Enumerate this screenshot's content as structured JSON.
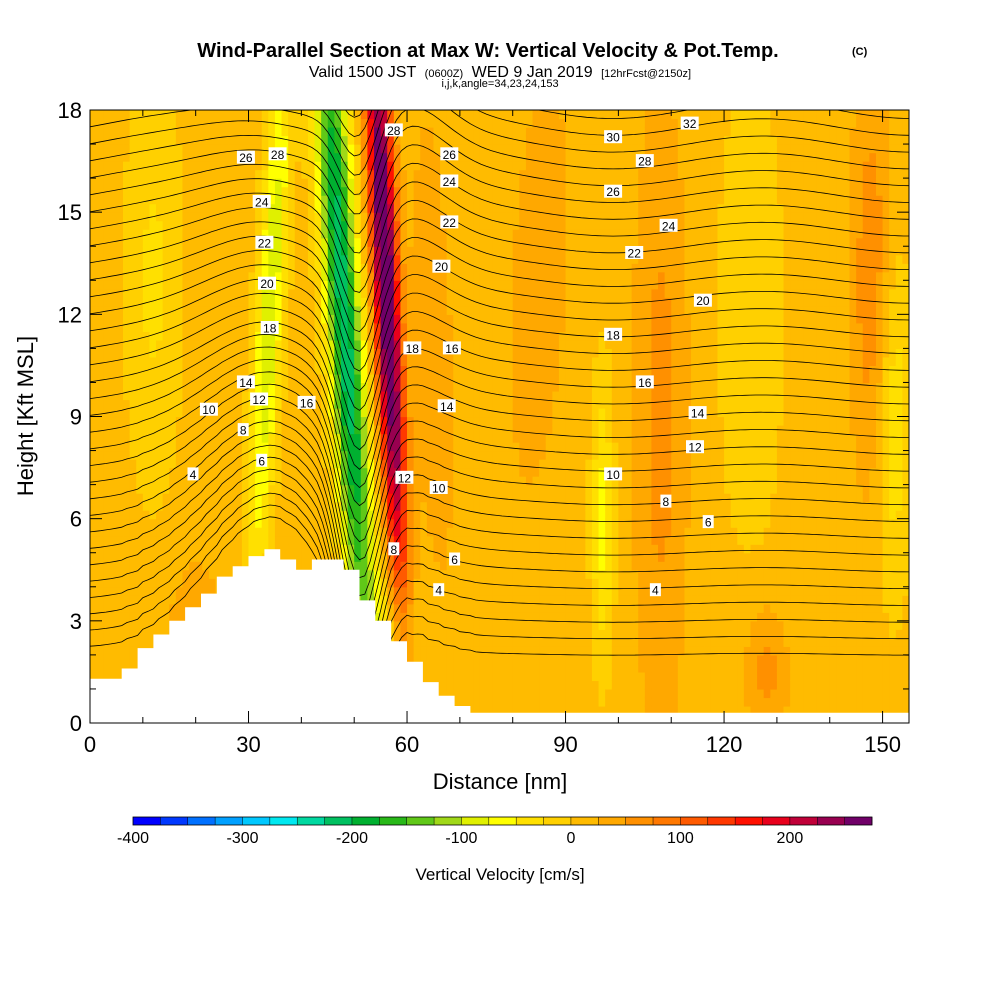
{
  "chart_data": {
    "type": "heatmap",
    "title": "Wind-Parallel Section at Max W: Vertical Velocity & Pot.Temp.",
    "title_mark": "(C)",
    "subtitle_parts": [
      "Valid 1500 JST",
      "(0600Z)",
      "WED 9 Jan 2019",
      "[12hrFcst@2150z]"
    ],
    "subtitle_small": "i,j,k,angle=34,23,24,153",
    "xlabel": "Distance [nm]",
    "ylabel": "Height [Kft MSL]",
    "xlim": [
      0,
      155
    ],
    "ylim": [
      0,
      18
    ],
    "x_ticks": [
      0,
      30,
      60,
      90,
      120,
      150
    ],
    "y_ticks": [
      0,
      3,
      6,
      9,
      12,
      15,
      18
    ],
    "x_minor_step": 10,
    "y_minor_step": 1,
    "colorbar": {
      "title": "Vertical Velocity [cm/s]",
      "min": -400,
      "max": 275,
      "step": 25,
      "tick_values": [
        -400,
        -300,
        -200,
        -100,
        0,
        100,
        200
      ],
      "colors": [
        "#0000ff",
        "#0038ff",
        "#0070ff",
        "#00a0ff",
        "#00c8ff",
        "#00e8f0",
        "#00d8a0",
        "#00c060",
        "#00b030",
        "#28b818",
        "#60c818",
        "#a0d818",
        "#e0f000",
        "#ffff00",
        "#ffe000",
        "#ffd000",
        "#ffbb00",
        "#ffa800",
        "#ff9000",
        "#ff7800",
        "#ff5a00",
        "#ff3800",
        "#ff1000",
        "#e8001c",
        "#c00038",
        "#980050",
        "#700068"
      ]
    },
    "terrain_profile": [
      [
        0,
        1.3
      ],
      [
        6,
        1.3
      ],
      [
        6,
        1.6
      ],
      [
        9,
        1.6
      ],
      [
        9,
        2.2
      ],
      [
        12,
        2.2
      ],
      [
        12,
        2.6
      ],
      [
        15,
        2.6
      ],
      [
        15,
        3.0
      ],
      [
        18,
        3.0
      ],
      [
        18,
        3.4
      ],
      [
        21,
        3.4
      ],
      [
        21,
        3.8
      ],
      [
        24,
        3.8
      ],
      [
        24,
        4.3
      ],
      [
        27,
        4.3
      ],
      [
        27,
        4.6
      ],
      [
        30,
        4.6
      ],
      [
        30,
        4.9
      ],
      [
        33,
        4.9
      ],
      [
        33,
        5.1
      ],
      [
        36,
        5.1
      ],
      [
        36,
        4.8
      ],
      [
        39,
        4.8
      ],
      [
        39,
        4.5
      ],
      [
        42,
        4.5
      ],
      [
        42,
        4.8
      ],
      [
        48,
        4.8
      ],
      [
        48,
        4.5
      ],
      [
        51,
        4.5
      ],
      [
        51,
        3.6
      ],
      [
        54,
        3.6
      ],
      [
        54,
        3.0
      ],
      [
        57,
        3.0
      ],
      [
        57,
        2.4
      ],
      [
        60,
        2.4
      ],
      [
        60,
        1.8
      ],
      [
        63,
        1.8
      ],
      [
        63,
        1.2
      ],
      [
        66,
        1.2
      ],
      [
        66,
        0.8
      ],
      [
        69,
        0.8
      ],
      [
        69,
        0.5
      ],
      [
        72,
        0.5
      ],
      [
        72,
        0.3
      ],
      [
        155,
        0.3
      ]
    ],
    "w_field": {
      "background": 10,
      "features": [
        {
          "x": 48,
          "z": 12,
          "sx": 3.2,
          "sz": 12,
          "slope": -0.42,
          "amp": -230
        },
        {
          "x": 56,
          "z": 13,
          "sx": 2.4,
          "sz": 10,
          "slope": -0.3,
          "amp": 300
        },
        {
          "x": 34,
          "z": 12,
          "sx": 2.5,
          "sz": 8,
          "slope": 0.35,
          "amp": -110
        },
        {
          "x": 65,
          "z": 11,
          "sx": 4,
          "sz": 8,
          "slope": -0.2,
          "amp": 30
        },
        {
          "x": 12,
          "z": 13,
          "sx": 5,
          "sz": 6,
          "slope": 0,
          "amp": -40
        },
        {
          "x": 20,
          "z": 2,
          "sx": 5,
          "sz": 2.5,
          "slope": 0,
          "amp": 50
        },
        {
          "x": 58,
          "z": 2.5,
          "sx": 4,
          "sz": 2,
          "slope": 0,
          "amp": -60
        },
        {
          "x": 85,
          "z": 13,
          "sx": 5,
          "sz": 6,
          "slope": 0.3,
          "amp": 40
        },
        {
          "x": 97,
          "z": 6,
          "sx": 2,
          "sz": 4,
          "slope": 0,
          "amp": -70
        },
        {
          "x": 108,
          "z": 9,
          "sx": 5,
          "sz": 9,
          "slope": 0,
          "amp": 50
        },
        {
          "x": 125,
          "z": 12,
          "sx": 6,
          "sz": 7,
          "slope": 0,
          "amp": -30
        },
        {
          "x": 128,
          "z": 1.5,
          "sx": 4,
          "sz": 2,
          "slope": 0,
          "amp": 50
        },
        {
          "x": 148,
          "z": 13,
          "sx": 4,
          "sz": 6,
          "slope": 0,
          "amp": 60
        },
        {
          "x": 152,
          "z": 9,
          "sx": 3,
          "sz": 5,
          "slope": 0,
          "amp": -60
        }
      ]
    },
    "theta_contours": {
      "min": 2,
      "max": 33,
      "step": 0.5
    },
    "contour_labels": [
      {
        "text": "26",
        "x": 29.5,
        "z": 16.6
      },
      {
        "text": "28",
        "x": 35.5,
        "z": 16.7
      },
      {
        "text": "24",
        "x": 32.5,
        "z": 15.3
      },
      {
        "text": "22",
        "x": 33.0,
        "z": 14.1
      },
      {
        "text": "20",
        "x": 33.5,
        "z": 12.9
      },
      {
        "text": "18",
        "x": 34.0,
        "z": 11.6
      },
      {
        "text": "14",
        "x": 29.5,
        "z": 10.0
      },
      {
        "text": "12",
        "x": 32.0,
        "z": 9.5
      },
      {
        "text": "16",
        "x": 41.0,
        "z": 9.4
      },
      {
        "text": "10",
        "x": 22.5,
        "z": 9.2
      },
      {
        "text": "8",
        "x": 29.0,
        "z": 8.6
      },
      {
        "text": "6",
        "x": 32.5,
        "z": 7.7
      },
      {
        "text": "4",
        "x": 19.5,
        "z": 7.3
      },
      {
        "text": "28",
        "x": 57.5,
        "z": 17.4
      },
      {
        "text": "26",
        "x": 68.0,
        "z": 16.7
      },
      {
        "text": "24",
        "x": 68.0,
        "z": 15.9
      },
      {
        "text": "22",
        "x": 68.0,
        "z": 14.7
      },
      {
        "text": "20",
        "x": 66.5,
        "z": 13.4
      },
      {
        "text": "18",
        "x": 61.0,
        "z": 11.0
      },
      {
        "text": "16",
        "x": 68.5,
        "z": 11.0
      },
      {
        "text": "14",
        "x": 67.5,
        "z": 9.3
      },
      {
        "text": "12",
        "x": 59.5,
        "z": 7.2
      },
      {
        "text": "10",
        "x": 66.0,
        "z": 6.9
      },
      {
        "text": "8",
        "x": 57.5,
        "z": 5.1
      },
      {
        "text": "6",
        "x": 69.0,
        "z": 4.8
      },
      {
        "text": "4",
        "x": 66.0,
        "z": 3.9
      },
      {
        "text": "32",
        "x": 113.5,
        "z": 17.6
      },
      {
        "text": "30",
        "x": 99.0,
        "z": 17.2
      },
      {
        "text": "28",
        "x": 105.0,
        "z": 16.5
      },
      {
        "text": "26",
        "x": 99.0,
        "z": 15.6
      },
      {
        "text": "24",
        "x": 109.5,
        "z": 14.6
      },
      {
        "text": "22",
        "x": 103.0,
        "z": 13.8
      },
      {
        "text": "20",
        "x": 116.0,
        "z": 12.4
      },
      {
        "text": "18",
        "x": 99.0,
        "z": 11.4
      },
      {
        "text": "16",
        "x": 105.0,
        "z": 10.0
      },
      {
        "text": "14",
        "x": 115.0,
        "z": 9.1
      },
      {
        "text": "12",
        "x": 114.5,
        "z": 8.1
      },
      {
        "text": "10",
        "x": 99.0,
        "z": 7.3
      },
      {
        "text": "8",
        "x": 109.0,
        "z": 6.5
      },
      {
        "text": "6",
        "x": 117.0,
        "z": 5.9
      },
      {
        "text": "4",
        "x": 107.0,
        "z": 3.9
      }
    ]
  }
}
